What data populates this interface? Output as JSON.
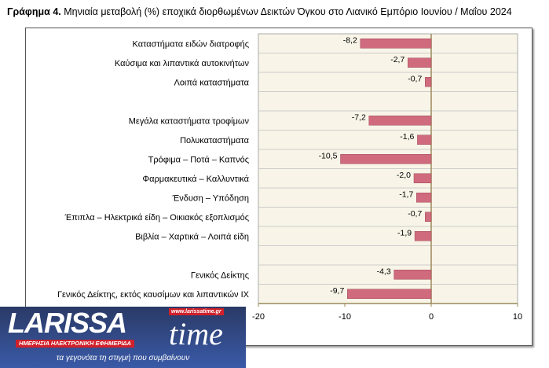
{
  "title_bold": "Γράφημα 4.",
  "title_rest": " Μηνιαία μεταβολή (%) εποχικά διορθωμένων Δεικτών Όγκου στο Λιανικό Εμπόριο Ιουνίου / Μαΐου 2024",
  "chart_data": {
    "type": "bar",
    "orientation": "horizontal",
    "categories": [
      "Καταστήματα ειδών διατροφής",
      "Καύσιμα και λιπαντικά αυτοκινήτων",
      "Λοιπά καταστήματα",
      "",
      "Μεγάλα καταστήματα τροφίμων",
      "Πολυκαταστήματα",
      "Τρόφιμα – Ποτά – Καπνός",
      "Φαρμακευτικά – Καλλυντικά",
      "Ένδυση – Υπόδηση",
      "Έπιπλα – Ηλεκτρικά είδη – Οικιακός εξοπλισμός",
      "Βιβλία – Χαρτικά – Λοιπά είδη",
      "",
      "Γενικός Δείκτης",
      "Γενικός Δείκτης, εκτός καυσίμων και λιπαντικών ΙΧ"
    ],
    "values": [
      -8.2,
      -2.7,
      -0.7,
      null,
      -7.2,
      -1.6,
      -10.5,
      -2.0,
      -1.7,
      -0.7,
      -1.9,
      null,
      -4.3,
      -9.7
    ],
    "labels": [
      "-8,2",
      "-2,7",
      "-0,7",
      "",
      "-7,2",
      "-1,6",
      "-10,5",
      "-2,0",
      "-1,7",
      "-0,7",
      "-1,9",
      "",
      "-4,3",
      "-9,7"
    ],
    "xlim": [
      -20,
      10
    ],
    "xticks": [
      -20,
      -10,
      0,
      10
    ],
    "xtick_labels": [
      "-20",
      "-10",
      "0",
      "10"
    ],
    "bar_color": "#cf6b7d",
    "plot_bg": "#f8f5e8",
    "grid": true
  },
  "logo": {
    "name": "LARISSA",
    "name2": "time",
    "url": "www.larissatime.gr",
    "tagline": "ΗΜΕΡΗΣΙΑ ΗΛΕΚΤΡΟΝΙΚΗ ΕΦΗΜΕΡΙΔΑ",
    "slogan": "τα γεγονότα τη στιγμή που συμβαίνουν"
  }
}
